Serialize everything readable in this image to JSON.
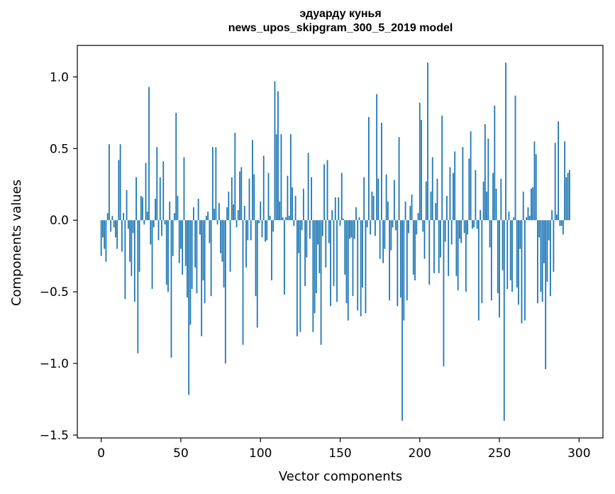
{
  "chart_data": {
    "type": "bar",
    "title_line1": "эдуарду кунья",
    "title_line2": "news_upos_skipgram_300_5_2019 model",
    "xlabel": "Vector components",
    "ylabel": "Components values",
    "xlim": [
      -15,
      315
    ],
    "ylim": [
      -1.52,
      1.22
    ],
    "xticks": [
      0,
      50,
      100,
      150,
      200,
      250,
      300
    ],
    "yticks": [
      -1.5,
      -1.0,
      -0.5,
      0.0,
      0.5,
      1.0
    ],
    "ytick_labels": [
      "−1.5",
      "−1.0",
      "−0.5",
      "0.0",
      "0.5",
      "1.0"
    ],
    "bar_color": "#1f77b4",
    "values": [
      -0.25,
      -0.12,
      -0.2,
      -0.29,
      0.05,
      0.53,
      -0.08,
      0.03,
      -0.05,
      -0.12,
      -0.2,
      0.42,
      0.53,
      -0.22,
      0.05,
      -0.55,
      0.21,
      -0.06,
      -0.29,
      -0.39,
      -0.09,
      -0.57,
      0.3,
      -0.93,
      -0.36,
      0.17,
      0.16,
      -0.03,
      0.4,
      0.06,
      0.93,
      -0.17,
      -0.48,
      -0.05,
      0.15,
      0.51,
      -0.14,
      0.3,
      -0.11,
      0.41,
      -0.03,
      -0.45,
      -0.5,
      0.13,
      -0.96,
      -0.25,
      0.05,
      0.75,
      0.17,
      -0.3,
      -0.2,
      -0.38,
      0.44,
      -0.32,
      -0.54,
      -1.22,
      -0.73,
      -0.48,
      0.09,
      -0.33,
      -0.51,
      0.15,
      -0.1,
      -0.81,
      -0.42,
      -0.58,
      0.03,
      0.06,
      -0.16,
      -0.53,
      0.51,
      0.08,
      0.51,
      -0.03,
      0.12,
      -0.23,
      -0.29,
      -0.47,
      -1.0,
      0.09,
      0.2,
      -0.36,
      0.3,
      0.11,
      0.61,
      -0.05,
      0.07,
      0.34,
      0.37,
      -0.87,
      0.1,
      -0.33,
      -0.14,
      0.29,
      -0.14,
      0.56,
      0.32,
      -0.53,
      -0.75,
      -0.02,
      0.13,
      -0.12,
      0.45,
      -0.15,
      -0.14,
      0.33,
      0.03,
      -0.42,
      -0.08,
      0.97,
      0.6,
      0.9,
      0.13,
      0.6,
      0.02,
      -0.52,
      0.02,
      0.31,
      0.03,
      0.6,
      0.23,
      -0.04,
      0.17,
      -0.81,
      -0.23,
      -0.78,
      -0.07,
      0.22,
      -0.46,
      -0.26,
      0.47,
      -0.13,
      0.3,
      -0.78,
      -0.65,
      -0.51,
      -0.17,
      -0.37,
      -0.87,
      -0.11,
      0.39,
      -0.33,
      0.42,
      -0.16,
      -0.6,
      0.07,
      -0.46,
      0.16,
      -0.57,
      0.16,
      -0.04,
      0.33,
      0.01,
      -0.38,
      -0.58,
      -0.7,
      -0.13,
      -0.12,
      -0.53,
      -0.13,
      0.09,
      -0.63,
      0.02,
      -0.67,
      -0.47,
      0.3,
      -0.65,
      -0.05,
      0.72,
      -0.1,
      0.2,
      0.17,
      -0.11,
      0.88,
      0.29,
      -0.27,
      0.68,
      -0.3,
      -0.2,
      0.32,
      0.13,
      -0.56,
      -0.21,
      -0.05,
      0.28,
      -0.07,
      -0.6,
      0.58,
      -0.54,
      -1.4,
      -0.7,
      0.13,
      -0.56,
      -0.09,
      0.1,
      0.18,
      -0.38,
      -0.42,
      -0.1,
      0.05,
      0.82,
      0.7,
      -0.08,
      -0.27,
      0.27,
      1.1,
      -0.45,
      0.2,
      0.44,
      -0.37,
      0.12,
      0.29,
      -0.37,
      -0.26,
      0.73,
      -1.02,
      -0.15,
      0.17,
      -0.39,
      0.37,
      -0.17,
      0.33,
      0.48,
      -0.39,
      -0.49,
      -0.13,
      -0.16,
      0.51,
      -0.09,
      -0.5,
      -0.1,
      0.43,
      0.62,
      -0.06,
      -0.05,
      0.35,
      -0.06,
      -0.7,
      0.07,
      -0.58,
      0.27,
      0.67,
      0.2,
      0.57,
      -0.19,
      -0.56,
      0.33,
      0.8,
      0.22,
      -0.51,
      -0.68,
      0.29,
      -0.35,
      -1.4,
      1.1,
      -0.48,
      0.06,
      -0.42,
      -0.5,
      0.02,
      0.87,
      -0.47,
      -0.59,
      -0.2,
      -0.72,
      0.2,
      -0.7,
      0.02,
      0.09,
      0.03,
      0.22,
      0.23,
      0.55,
      0.46,
      -0.58,
      -0.12,
      -0.5,
      -0.57,
      -0.3,
      -1.04,
      -0.43,
      -0.14,
      -0.53,
      0.07,
      -0.36,
      0.54,
      0.04,
      0.69,
      -0.04,
      -0.04,
      -0.1,
      0.55,
      0.3,
      0.33,
      0.35
    ]
  }
}
